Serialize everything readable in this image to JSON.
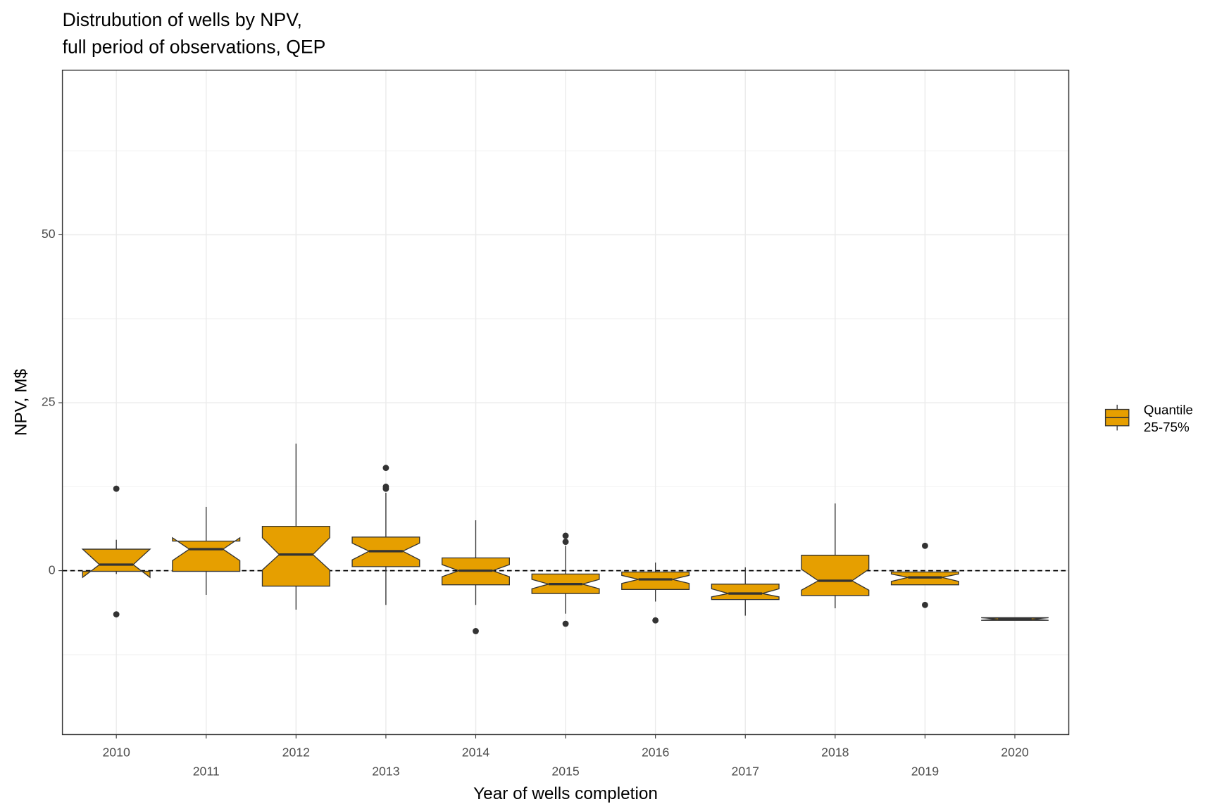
{
  "chart_data": {
    "type": "boxplot",
    "title": [
      "Distrubution of wells by NPV,",
      "full period of observations, QEP"
    ],
    "x_label": "Year of wells completion",
    "y_label": "NPV, M$",
    "categories": [
      "2010",
      "2011",
      "2012",
      "2013",
      "2014",
      "2015",
      "2016",
      "2017",
      "2018",
      "2019",
      "2020"
    ],
    "whisker_low": [
      -0.5,
      -3.6,
      -5.8,
      -5.1,
      -5.1,
      -6.4,
      -4.6,
      -6.7,
      -5.6,
      -2.1,
      -7.4
    ],
    "q1": [
      -0.1,
      -0.1,
      -2.3,
      0.6,
      -2.1,
      -3.4,
      -2.8,
      -4.3,
      -3.7,
      -2.1,
      -7.4
    ],
    "notch_low": [
      -1.0,
      1.5,
      0.1,
      1.6,
      -0.9,
      -2.7,
      -1.9,
      -3.9,
      -2.9,
      -1.6,
      -7.4
    ],
    "median": [
      0.9,
      3.2,
      2.4,
      2.9,
      0.0,
      -2.0,
      -1.3,
      -3.4,
      -1.5,
      -1.0,
      -7.2
    ],
    "notch_high": [
      3.2,
      4.9,
      4.9,
      4.1,
      0.9,
      -1.3,
      -0.7,
      -2.7,
      0.2,
      -0.5,
      -7.0
    ],
    "q3": [
      3.2,
      4.4,
      6.6,
      5.0,
      1.9,
      -0.5,
      -0.2,
      -2.0,
      2.3,
      -0.2,
      -7.0
    ],
    "whisker_high": [
      4.6,
      9.5,
      18.9,
      11.6,
      7.5,
      3.7,
      1.2,
      0.5,
      10.0,
      -0.2,
      -7.0
    ],
    "outliers": [
      [
        12.2,
        -6.5
      ],
      [],
      [],
      [
        15.3,
        12.5,
        12.2
      ],
      [
        -9.0
      ],
      [
        5.2,
        4.3,
        -7.9
      ],
      [
        -7.4
      ],
      [],
      [],
      [
        3.7,
        -5.1
      ],
      []
    ],
    "color": "#E69F00",
    "outline_color": "#333333",
    "legend": [
      "Quantile",
      "25-75%"
    ],
    "legend_position": "right",
    "reference_line": 0,
    "ylim": [
      -24.4,
      74.5
    ],
    "yticks": [
      0,
      25,
      50
    ],
    "minor_yticks": [
      -12.5,
      12.5,
      37.5,
      62.5
    ],
    "grid": true
  }
}
